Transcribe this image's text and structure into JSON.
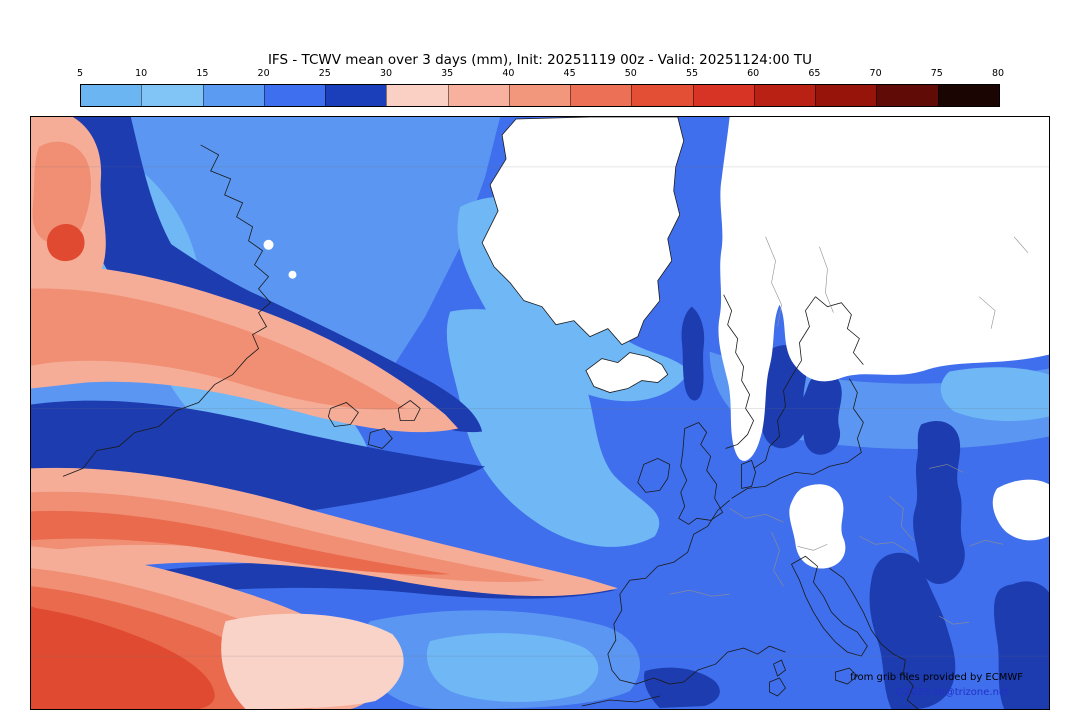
{
  "title": "IFS - TCWV mean over 3 days (mm), Init: 20251119 00z - Valid: 20251124:00 TU",
  "colorbar": {
    "tick_labels": [
      "5",
      "10",
      "15",
      "20",
      "25",
      "30",
      "35",
      "40",
      "45",
      "50",
      "55",
      "60",
      "65",
      "70",
      "75",
      "80"
    ],
    "segment_colors": [
      "#6ab5f2",
      "#81c4f6",
      "#5c9bf2",
      "#3e6fee",
      "#1b3fba",
      "#fad0c4",
      "#f7b19e",
      "#f2967c",
      "#ec7055",
      "#e34f35",
      "#d83425",
      "#b82114",
      "#97140a",
      "#600b05",
      "#1a0503"
    ]
  },
  "map": {
    "credit_line1": "from grib files provided by ECMWF",
    "credit_line2": "©2025 sb@trizone.net"
  },
  "chart_data": {
    "type": "heatmap",
    "title": "IFS - TCWV mean over 3 days (mm)",
    "init": "20251119 00z",
    "valid": "20251124:00 TU",
    "scale_ticks": [
      5,
      10,
      15,
      20,
      25,
      30,
      35,
      40,
      45,
      50,
      55,
      60,
      65,
      70,
      75,
      80
    ],
    "scale_colors": [
      "#6ab5f2",
      "#81c4f6",
      "#5c9bf2",
      "#3e6fee",
      "#1b3fba",
      "#fad0c4",
      "#f7b19e",
      "#f2967c",
      "#ec7055",
      "#e34f35",
      "#d83425",
      "#b82114",
      "#97140a",
      "#600b05",
      "#1a0503"
    ],
    "legend_position": "top"
  }
}
